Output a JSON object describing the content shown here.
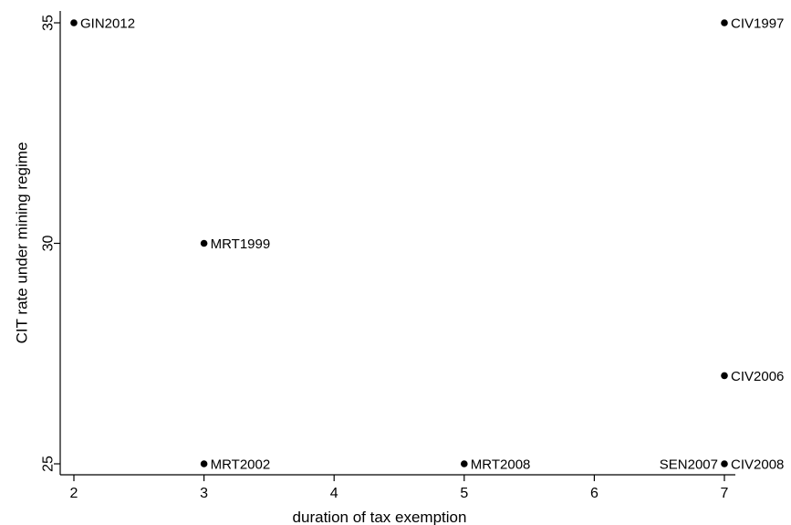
{
  "chart_data": {
    "type": "scatter",
    "title": "",
    "xlabel": "duration of tax exemption",
    "ylabel": "CIT rate under mining regime",
    "xlim": [
      2,
      7
    ],
    "ylim": [
      25,
      35
    ],
    "x_ticks": [
      2,
      3,
      4,
      5,
      6,
      7
    ],
    "y_ticks": [
      25,
      30,
      35
    ],
    "x_tick_labels": [
      "2",
      "3",
      "4",
      "5",
      "6",
      "7"
    ],
    "y_tick_labels": [
      "25",
      "30",
      "35"
    ],
    "grid": false,
    "legend": "none",
    "marker_color": "#000000",
    "points": [
      {
        "x": 2,
        "y": 35,
        "label": "GIN2012",
        "label_side": "right"
      },
      {
        "x": 7,
        "y": 35,
        "label": "CIV1997",
        "label_side": "right"
      },
      {
        "x": 3,
        "y": 30,
        "label": "MRT1999",
        "label_side": "right"
      },
      {
        "x": 7,
        "y": 27,
        "label": "CIV2006",
        "label_side": "right"
      },
      {
        "x": 3,
        "y": 25,
        "label": "MRT2002",
        "label_side": "right"
      },
      {
        "x": 5,
        "y": 25,
        "label": "MRT2008",
        "label_side": "right"
      },
      {
        "x": 7,
        "y": 25,
        "label": "SEN2007",
        "label_side": "left"
      },
      {
        "x": 7,
        "y": 25,
        "label": "CIV2008",
        "label_side": "right"
      }
    ]
  }
}
